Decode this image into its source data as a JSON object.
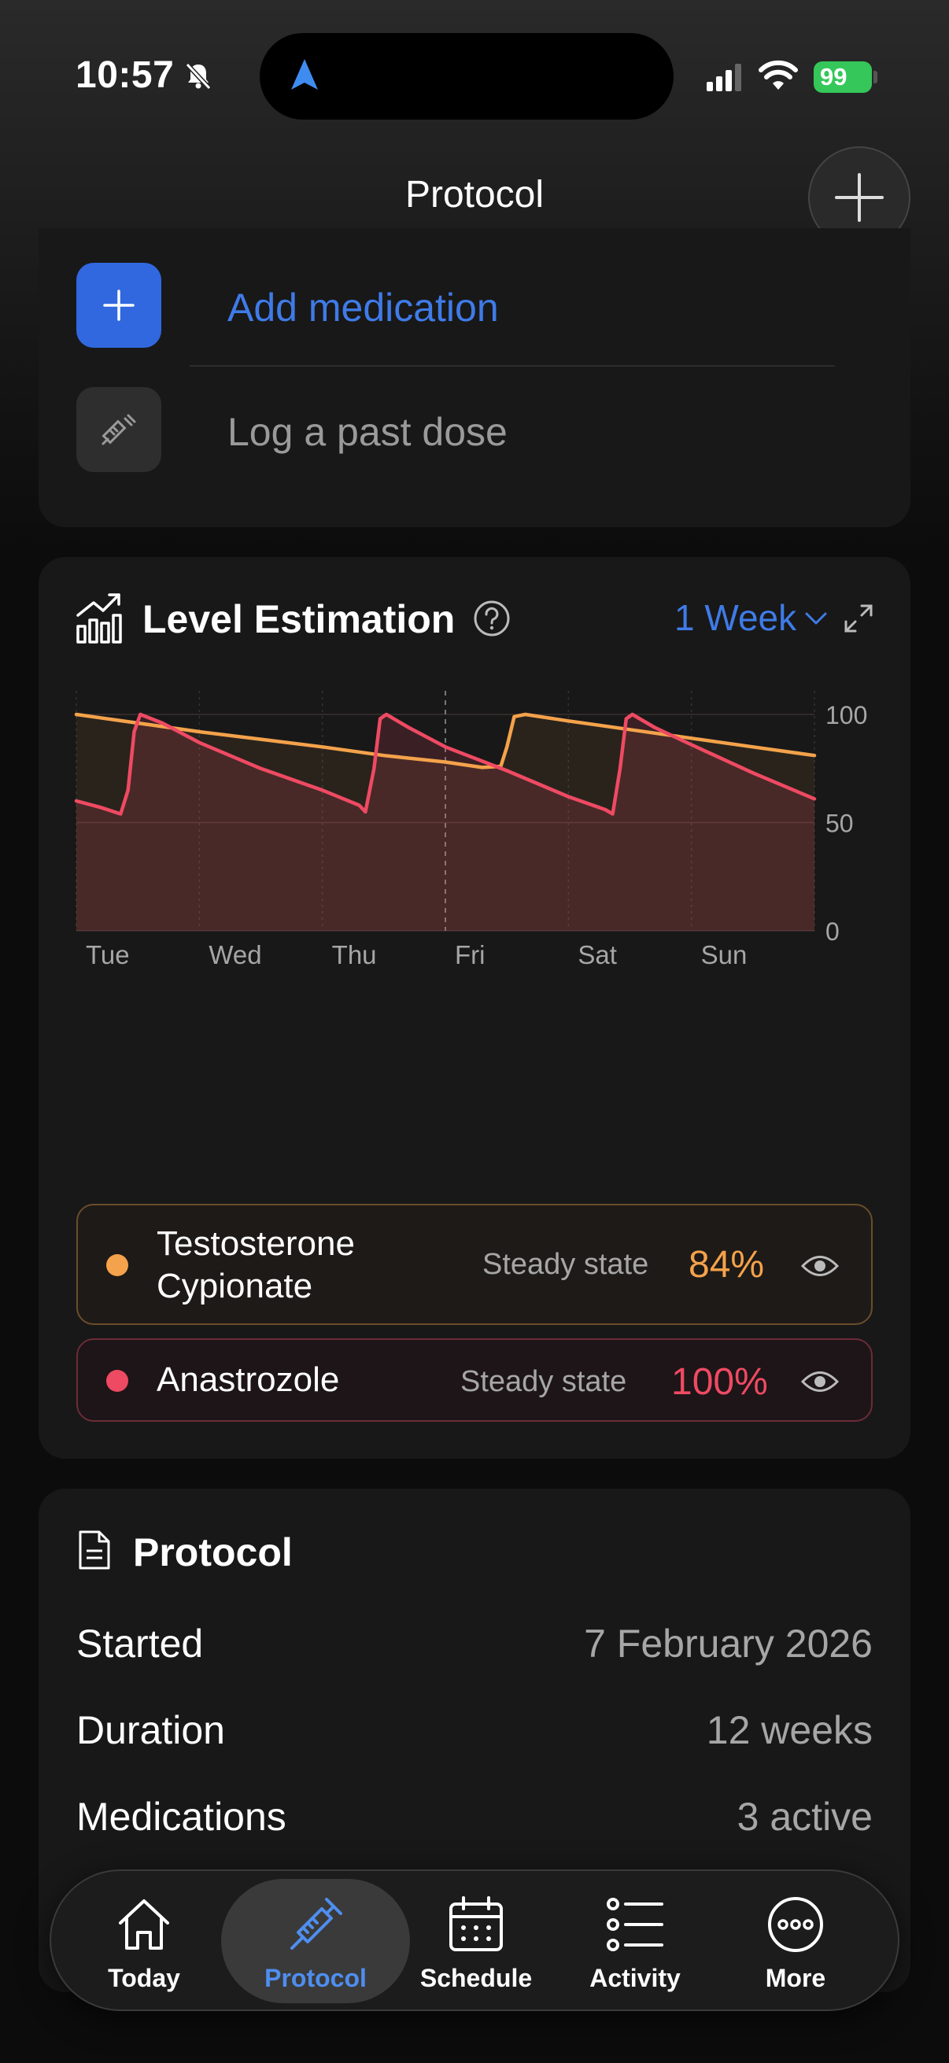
{
  "status_bar": {
    "time": "10:57",
    "battery": "99"
  },
  "header": {
    "title": "Protocol"
  },
  "actions": {
    "add_medication": "Add medication",
    "log_past_dose": "Log a past dose"
  },
  "level_estimation": {
    "title": "Level Estimation",
    "range": "1 Week",
    "legend": [
      {
        "name_line1": "Testosterone",
        "name_line2": "Cypionate",
        "status": "Steady state",
        "percent": "84%",
        "color": "#f4a24b"
      },
      {
        "name": "Anastrozole",
        "status": "Steady state",
        "percent": "100%",
        "color": "#ef4a63"
      }
    ]
  },
  "chart_data": {
    "type": "line",
    "x_ticks": [
      "Tue",
      "Wed",
      "Thu",
      "Fri",
      "Sat",
      "Sun"
    ],
    "y_ticks": [
      "100",
      "50",
      "0"
    ],
    "ylim": [
      0,
      100
    ],
    "xlim": [
      0,
      6
    ],
    "grid": true,
    "series": [
      {
        "name": "Testosterone Cypionate",
        "color": "#f4a24b",
        "points": [
          [
            0,
            100
          ],
          [
            0.5,
            96
          ],
          [
            1.0,
            92
          ],
          [
            1.5,
            88.5
          ],
          [
            2.0,
            85
          ],
          [
            2.5,
            81
          ],
          [
            3.0,
            78
          ],
          [
            3.3,
            75.5
          ],
          [
            3.45,
            76
          ],
          [
            3.5,
            85
          ],
          [
            3.56,
            99
          ],
          [
            3.65,
            100
          ],
          [
            4.0,
            97
          ],
          [
            4.5,
            93
          ],
          [
            5.0,
            89
          ],
          [
            5.5,
            85
          ],
          [
            6.0,
            81
          ]
        ]
      },
      {
        "name": "Anastrozole",
        "color": "#ef4a63",
        "points": [
          [
            0,
            60
          ],
          [
            0.2,
            57
          ],
          [
            0.36,
            54
          ],
          [
            0.42,
            65
          ],
          [
            0.47,
            92
          ],
          [
            0.52,
            100
          ],
          [
            0.7,
            96
          ],
          [
            1.0,
            87
          ],
          [
            1.5,
            75
          ],
          [
            2.0,
            65
          ],
          [
            2.3,
            58
          ],
          [
            2.35,
            55
          ],
          [
            2.42,
            75
          ],
          [
            2.47,
            98
          ],
          [
            2.52,
            100
          ],
          [
            2.7,
            94
          ],
          [
            3.0,
            85
          ],
          [
            3.5,
            74
          ],
          [
            4.0,
            62
          ],
          [
            4.3,
            56
          ],
          [
            4.36,
            54
          ],
          [
            4.42,
            75
          ],
          [
            4.47,
            98
          ],
          [
            4.52,
            100
          ],
          [
            4.7,
            94
          ],
          [
            5.0,
            86
          ],
          [
            5.5,
            73
          ],
          [
            6.0,
            61
          ]
        ]
      }
    ]
  },
  "protocol": {
    "title": "Protocol",
    "rows": [
      {
        "label": "Started",
        "value": "7 February 2026"
      },
      {
        "label": "Duration",
        "value": "12 weeks"
      },
      {
        "label": "Medications",
        "value": "3 active"
      }
    ]
  },
  "tabs": [
    {
      "label": "Today",
      "icon": "home-icon"
    },
    {
      "label": "Protocol",
      "icon": "syringe-icon",
      "active": true
    },
    {
      "label": "Schedule",
      "icon": "calendar-icon"
    },
    {
      "label": "Activity",
      "icon": "list-icon"
    },
    {
      "label": "More",
      "icon": "more-icon"
    }
  ],
  "colors": {
    "accent": "#3f7be8",
    "testosterone": "#f4a24b",
    "anastrozole": "#ef4a63"
  }
}
